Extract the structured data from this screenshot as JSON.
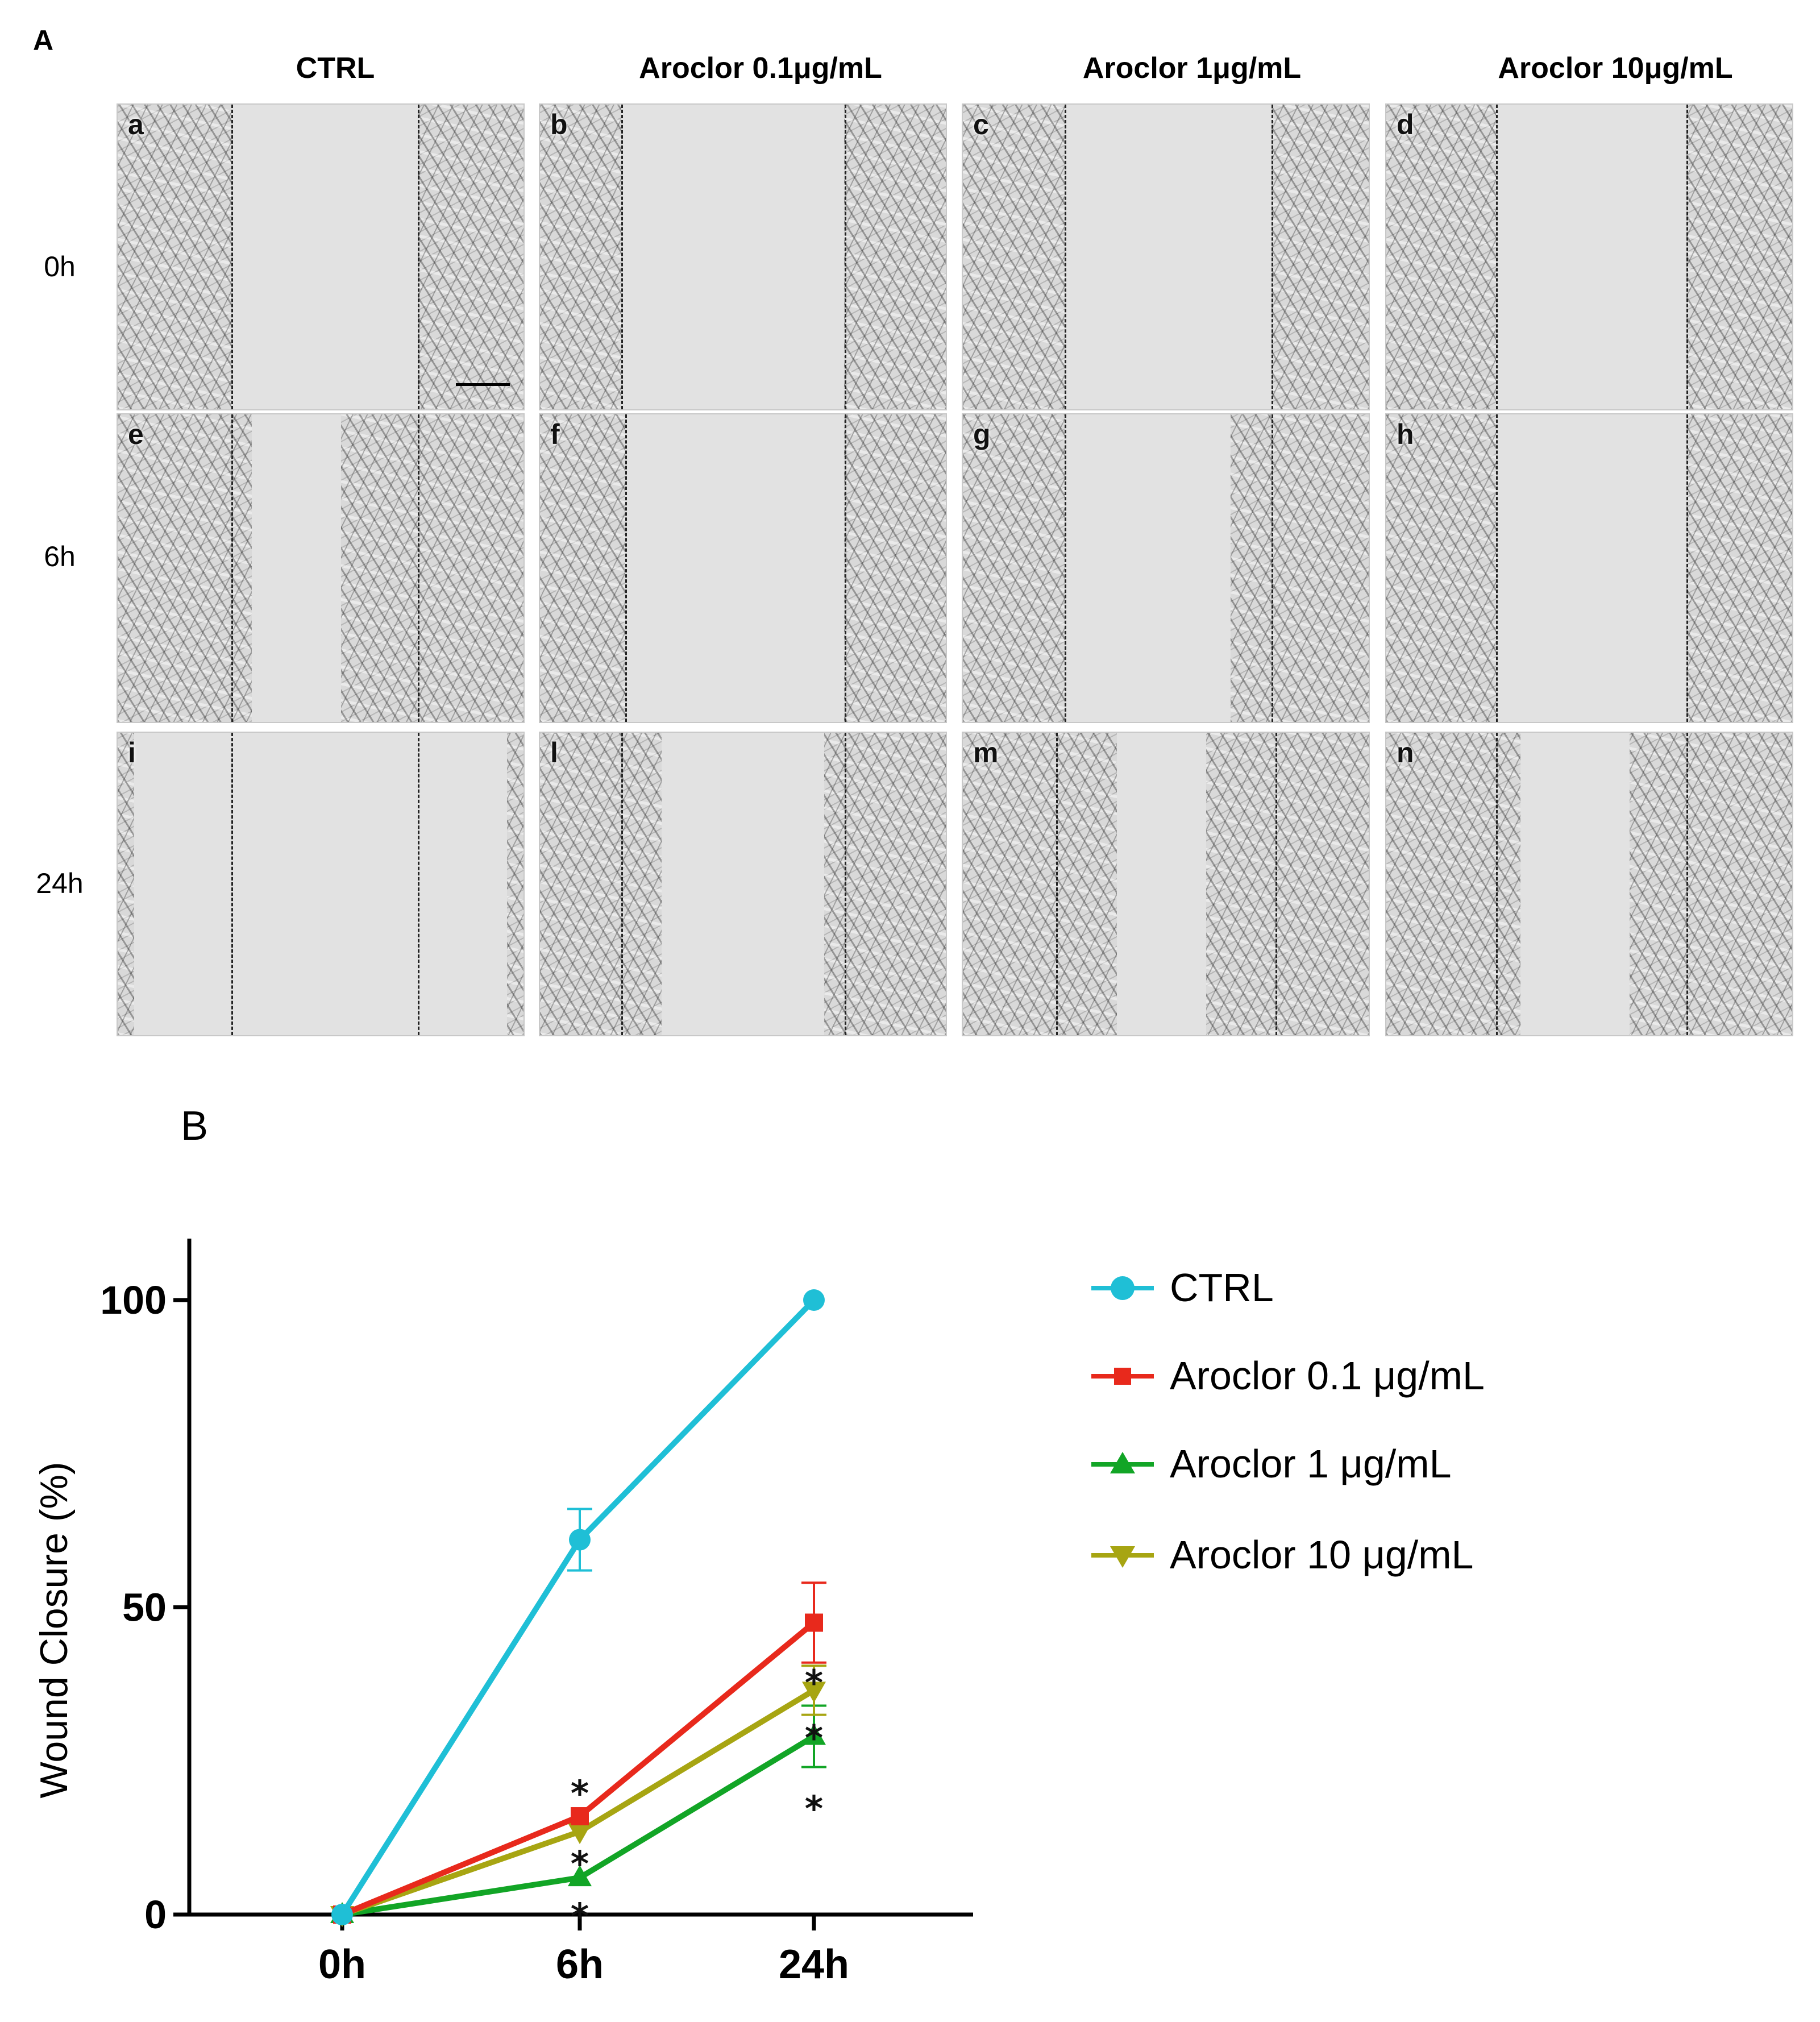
{
  "panel_a_label": "A",
  "panel_b_label": "B",
  "micrographs": {
    "column_headers": [
      "CTRL",
      "Aroclor 0.1μg/mL",
      "Aroclor 1μg/mL",
      "Aroclor 10μg/mL"
    ],
    "row_headers": [
      "0h",
      "6h",
      "24h"
    ],
    "panel_labels": [
      [
        "a",
        "b",
        "c",
        "d"
      ],
      [
        "e",
        "f",
        "g",
        "h"
      ],
      [
        "i",
        "l",
        "m",
        "n"
      ]
    ]
  },
  "chart_data": {
    "type": "line",
    "categories": [
      "0h",
      "6h",
      "24h"
    ],
    "ylabel": "Wound Closure (%)",
    "xlabel": "",
    "ylim": [
      0,
      110
    ],
    "yticks": [
      0,
      50,
      100
    ],
    "grid": false,
    "legend_position": "right",
    "series": [
      {
        "name": "CTRL",
        "marker": "circle",
        "color": "#1fbfd6",
        "values": [
          0,
          61,
          100
        ],
        "errors": [
          0,
          5,
          0
        ]
      },
      {
        "name": "Aroclor 0.1 μg/mL",
        "marker": "square",
        "color": "#e8291c",
        "values": [
          0,
          16,
          47.5
        ],
        "errors": [
          0,
          0,
          6.5
        ]
      },
      {
        "name": "Aroclor 1 μg/mL",
        "marker": "triangle-up",
        "color": "#12a526",
        "values": [
          0,
          6,
          29
        ],
        "errors": [
          0,
          0,
          5
        ]
      },
      {
        "name": "Aroclor 10 μg/mL",
        "marker": "triangle-down",
        "color": "#a7a512",
        "values": [
          0,
          13.5,
          36.5
        ],
        "errors": [
          0,
          0,
          4
        ]
      }
    ],
    "annotations": [
      {
        "text": "*",
        "x": "6h",
        "y": 20.5
      },
      {
        "text": "*",
        "x": "6h",
        "y": 9
      },
      {
        "text": "*",
        "x": "6h",
        "y": 0.5
      },
      {
        "text": "*",
        "x": "24h",
        "y": 38.5
      },
      {
        "text": "*",
        "x": "24h",
        "y": 29.5
      },
      {
        "text": "*",
        "x": "24h",
        "y": 18
      }
    ]
  }
}
